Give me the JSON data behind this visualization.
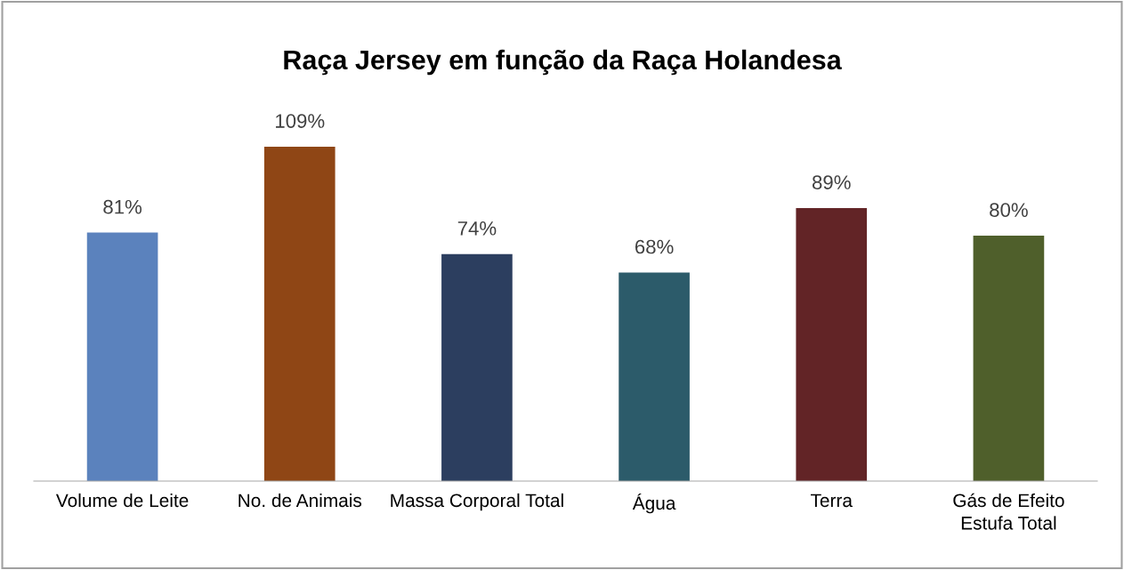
{
  "chart_data": {
    "type": "bar",
    "title": "Raça Jersey em função da Raça Holandesa",
    "categories": [
      "Volume de Leite",
      "No. de Animais",
      "Massa Corporal Total",
      "Água",
      "Terra",
      "Gás de Efeito\nEstufa Total"
    ],
    "values": [
      81,
      109,
      74,
      68,
      89,
      80
    ],
    "colors": [
      "#5b82bd",
      "#8f4615",
      "#2c3e5f",
      "#2c5b6a",
      "#622426",
      "#4f5f2b"
    ],
    "value_labels": [
      "81%",
      "109%",
      "74%",
      "68%",
      "89%",
      "80%"
    ],
    "tick_labels": "x",
    "grid": false,
    "legend": false
  }
}
